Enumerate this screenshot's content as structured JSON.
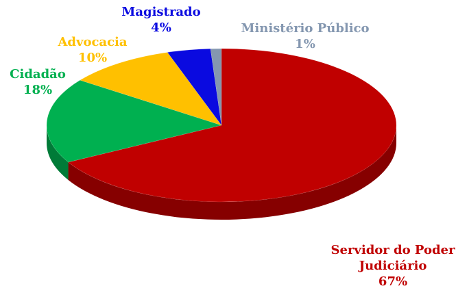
{
  "chart_data": {
    "type": "pie",
    "categories": [
      "Servidor do Poder Judiciário",
      "Cidadão",
      "Advocacia",
      "Magistrado",
      "Ministério Público"
    ],
    "values": [
      67,
      18,
      10,
      4,
      1
    ],
    "value_labels": [
      "67%",
      "18%",
      "10%",
      "4%",
      "1%"
    ],
    "colors": [
      "#c00000",
      "#00b050",
      "#ffc000",
      "#0a0ae0",
      "#8497b0"
    ]
  }
}
